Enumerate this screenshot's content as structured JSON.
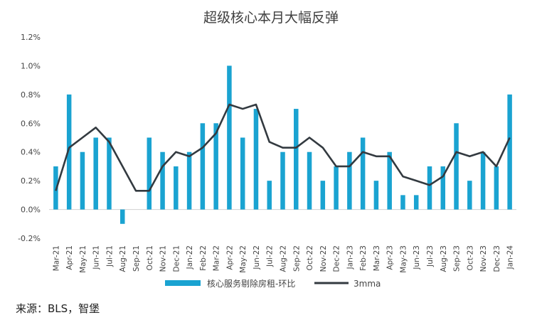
{
  "source": "来源：BLS，智堡",
  "chart_data": {
    "type": "bar",
    "title": "超级核心本月大幅反弹",
    "xlabel": "",
    "ylabel": "",
    "ylim": [
      -0.2,
      1.2
    ],
    "y_ticks": [
      "-0.2%",
      "0.0%",
      "0.2%",
      "0.4%",
      "0.6%",
      "0.8%",
      "1.0%",
      "1.2%"
    ],
    "y_tick_values": [
      -0.2,
      0.0,
      0.2,
      0.4,
      0.6,
      0.8,
      1.0,
      1.2
    ],
    "grid": false,
    "legend_position": "bottom",
    "categories": [
      "Mar-21",
      "Apr-21",
      "May-21",
      "Jun-21",
      "Jul-21",
      "Aug-21",
      "Sep-21",
      "Oct-21",
      "Nov-21",
      "Dec-21",
      "Jan-22",
      "Feb-22",
      "Mar-22",
      "Apr-22",
      "May-22",
      "Jun-22",
      "Jul-22",
      "Aug-22",
      "Sep-22",
      "Oct-22",
      "Nov-22",
      "Dec-22",
      "Jan-23",
      "Feb-23",
      "Mar-23",
      "Apr-23",
      "May-23",
      "Jun-23",
      "Jul-23",
      "Aug-23",
      "Sep-23",
      "Oct-23",
      "Nov-23",
      "Dec-23",
      "Jan-24"
    ],
    "series": [
      {
        "name": "核心服务剔除房租-环比",
        "type": "bar",
        "color": "#1aa3d1",
        "values": [
          0.3,
          0.8,
          0.4,
          0.5,
          0.5,
          -0.1,
          0.0,
          0.5,
          0.4,
          0.3,
          0.4,
          0.6,
          0.6,
          1.0,
          0.5,
          0.7,
          0.2,
          0.4,
          0.7,
          0.4,
          0.2,
          0.3,
          0.4,
          0.5,
          0.2,
          0.4,
          0.1,
          0.1,
          0.3,
          0.3,
          0.6,
          0.2,
          0.4,
          0.3,
          0.8
        ]
      },
      {
        "name": "3mma",
        "type": "line",
        "color": "#333a40",
        "values": [
          0.13,
          0.43,
          0.5,
          0.57,
          0.47,
          0.3,
          0.13,
          0.13,
          0.3,
          0.4,
          0.37,
          0.43,
          0.53,
          0.73,
          0.7,
          0.73,
          0.47,
          0.43,
          0.43,
          0.5,
          0.43,
          0.3,
          0.3,
          0.4,
          0.37,
          0.37,
          0.23,
          0.2,
          0.17,
          0.23,
          0.4,
          0.37,
          0.4,
          0.3,
          0.5
        ]
      }
    ]
  }
}
